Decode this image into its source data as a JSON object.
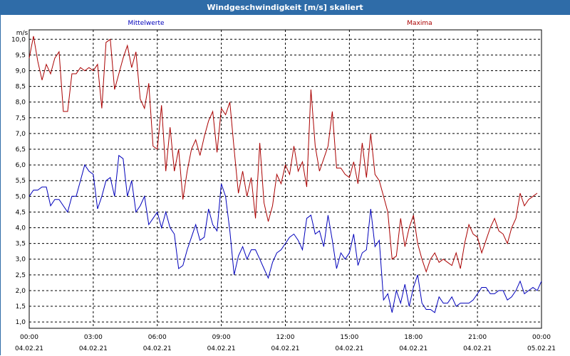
{
  "window": {
    "title": "Windgeschwindigkeit [m/s] skaliert"
  },
  "colors": {
    "avg": "#0000bb",
    "max": "#aa0000",
    "grid": "#000000",
    "frame": "#2f6ca8"
  },
  "chart_data": {
    "type": "line",
    "title": "Windgeschwindigkeit [m/s] skaliert",
    "ylabel": "m/s",
    "xlabel": "",
    "ylim": [
      0.8,
      10.3
    ],
    "xlim": [
      0,
      24
    ],
    "grid": true,
    "legend_position": "top",
    "yticks": [
      "1,0",
      "1,5",
      "2,0",
      "2,5",
      "3,0",
      "3,5",
      "4,0",
      "4,5",
      "5,0",
      "5,5",
      "6,0",
      "6,5",
      "7,0",
      "7,5",
      "8,0",
      "8,5",
      "9,0",
      "9,5",
      "10,0"
    ],
    "xticks": [
      {
        "time": "00:00",
        "date": "04.02.21"
      },
      {
        "time": "03:00",
        "date": "04.02.21"
      },
      {
        "time": "06:00",
        "date": "04.02.21"
      },
      {
        "time": "09:00",
        "date": "04.02.21"
      },
      {
        "time": "12:00",
        "date": "04.02.21"
      },
      {
        "time": "15:00",
        "date": "04.02.21"
      },
      {
        "time": "18:00",
        "date": "04.02.21"
      },
      {
        "time": "21:00",
        "date": "04.02.21"
      },
      {
        "time": "00:00",
        "date": "05.02.21"
      }
    ],
    "series": [
      {
        "name": "Mittelwerte",
        "color": "#0000bb",
        "points": [
          [
            0.0,
            5.0
          ],
          [
            0.2,
            5.2
          ],
          [
            0.4,
            5.2
          ],
          [
            0.6,
            5.3
          ],
          [
            0.8,
            5.3
          ],
          [
            1.0,
            4.7
          ],
          [
            1.2,
            4.9
          ],
          [
            1.4,
            4.9
          ],
          [
            1.6,
            4.7
          ],
          [
            1.8,
            4.5
          ],
          [
            2.0,
            5.0
          ],
          [
            2.2,
            5.0
          ],
          [
            2.4,
            5.5
          ],
          [
            2.6,
            6.0
          ],
          [
            2.8,
            5.8
          ],
          [
            3.0,
            5.7
          ],
          [
            3.2,
            4.6
          ],
          [
            3.4,
            5.0
          ],
          [
            3.6,
            5.5
          ],
          [
            3.8,
            5.6
          ],
          [
            4.0,
            5.0
          ],
          [
            4.2,
            6.3
          ],
          [
            4.4,
            6.2
          ],
          [
            4.6,
            5.0
          ],
          [
            4.8,
            5.5
          ],
          [
            5.0,
            4.5
          ],
          [
            5.2,
            4.7
          ],
          [
            5.4,
            5.0
          ],
          [
            5.6,
            4.1
          ],
          [
            5.8,
            4.3
          ],
          [
            6.0,
            4.5
          ],
          [
            6.2,
            4.0
          ],
          [
            6.4,
            4.5
          ],
          [
            6.6,
            4.0
          ],
          [
            6.8,
            3.8
          ],
          [
            7.0,
            2.7
          ],
          [
            7.2,
            2.8
          ],
          [
            7.4,
            3.3
          ],
          [
            7.6,
            3.7
          ],
          [
            7.8,
            4.1
          ],
          [
            8.0,
            3.6
          ],
          [
            8.2,
            3.7
          ],
          [
            8.4,
            4.6
          ],
          [
            8.6,
            4.1
          ],
          [
            8.8,
            3.9
          ],
          [
            9.0,
            5.4
          ],
          [
            9.2,
            5.0
          ],
          [
            9.4,
            3.9
          ],
          [
            9.6,
            2.5
          ],
          [
            9.8,
            3.1
          ],
          [
            10.0,
            3.4
          ],
          [
            10.2,
            3.0
          ],
          [
            10.4,
            3.3
          ],
          [
            10.6,
            3.3
          ],
          [
            10.8,
            3.0
          ],
          [
            11.0,
            2.7
          ],
          [
            11.2,
            2.4
          ],
          [
            11.4,
            2.9
          ],
          [
            11.6,
            3.2
          ],
          [
            11.8,
            3.3
          ],
          [
            12.0,
            3.5
          ],
          [
            12.2,
            3.7
          ],
          [
            12.4,
            3.8
          ],
          [
            12.6,
            3.6
          ],
          [
            12.8,
            3.3
          ],
          [
            13.0,
            4.3
          ],
          [
            13.2,
            4.4
          ],
          [
            13.4,
            3.8
          ],
          [
            13.6,
            3.9
          ],
          [
            13.8,
            3.4
          ],
          [
            14.0,
            4.4
          ],
          [
            14.2,
            3.6
          ],
          [
            14.4,
            2.7
          ],
          [
            14.6,
            3.2
          ],
          [
            14.8,
            3.0
          ],
          [
            15.0,
            3.2
          ],
          [
            15.2,
            3.8
          ],
          [
            15.4,
            2.8
          ],
          [
            15.6,
            3.2
          ],
          [
            15.8,
            3.3
          ],
          [
            16.0,
            4.6
          ],
          [
            16.2,
            3.4
          ],
          [
            16.4,
            3.6
          ],
          [
            16.6,
            1.7
          ],
          [
            16.8,
            1.9
          ],
          [
            17.0,
            1.3
          ],
          [
            17.2,
            2.0
          ],
          [
            17.4,
            1.6
          ],
          [
            17.6,
            2.2
          ],
          [
            17.8,
            1.5
          ],
          [
            18.0,
            2.1
          ],
          [
            18.2,
            2.5
          ],
          [
            18.4,
            1.6
          ],
          [
            18.6,
            1.4
          ],
          [
            18.8,
            1.4
          ],
          [
            19.0,
            1.3
          ],
          [
            19.2,
            1.8
          ],
          [
            19.4,
            1.6
          ],
          [
            19.6,
            1.6
          ],
          [
            19.8,
            1.8
          ],
          [
            20.0,
            1.5
          ],
          [
            20.2,
            1.6
          ],
          [
            20.4,
            1.6
          ],
          [
            20.6,
            1.6
          ],
          [
            20.8,
            1.7
          ],
          [
            21.0,
            1.9
          ],
          [
            21.2,
            2.1
          ],
          [
            21.4,
            2.1
          ],
          [
            21.6,
            1.9
          ],
          [
            21.8,
            1.9
          ],
          [
            22.0,
            2.0
          ],
          [
            22.2,
            2.0
          ],
          [
            22.4,
            1.7
          ],
          [
            22.6,
            1.8
          ],
          [
            22.8,
            2.0
          ],
          [
            23.0,
            2.3
          ],
          [
            23.2,
            1.9
          ],
          [
            23.4,
            2.0
          ],
          [
            23.6,
            2.1
          ],
          [
            23.8,
            2.0
          ],
          [
            24.0,
            2.3
          ]
        ]
      },
      {
        "name": "Maxima",
        "color": "#aa0000",
        "points": [
          [
            0.0,
            9.4
          ],
          [
            0.2,
            10.1
          ],
          [
            0.4,
            9.3
          ],
          [
            0.6,
            8.7
          ],
          [
            0.8,
            9.2
          ],
          [
            1.0,
            8.9
          ],
          [
            1.2,
            9.4
          ],
          [
            1.4,
            9.6
          ],
          [
            1.6,
            7.7
          ],
          [
            1.8,
            7.7
          ],
          [
            2.0,
            8.9
          ],
          [
            2.2,
            8.9
          ],
          [
            2.4,
            9.1
          ],
          [
            2.6,
            9.0
          ],
          [
            2.8,
            9.1
          ],
          [
            3.0,
            9.0
          ],
          [
            3.2,
            9.2
          ],
          [
            3.4,
            7.8
          ],
          [
            3.6,
            9.9
          ],
          [
            3.8,
            10.0
          ],
          [
            4.0,
            8.4
          ],
          [
            4.2,
            8.9
          ],
          [
            4.4,
            9.4
          ],
          [
            4.6,
            9.8
          ],
          [
            4.8,
            9.1
          ],
          [
            5.0,
            9.6
          ],
          [
            5.2,
            8.1
          ],
          [
            5.4,
            7.8
          ],
          [
            5.6,
            8.6
          ],
          [
            5.8,
            6.6
          ],
          [
            6.0,
            6.5
          ],
          [
            6.2,
            7.9
          ],
          [
            6.4,
            5.8
          ],
          [
            6.6,
            7.2
          ],
          [
            6.8,
            5.8
          ],
          [
            7.0,
            6.5
          ],
          [
            7.2,
            4.9
          ],
          [
            7.4,
            5.8
          ],
          [
            7.6,
            6.5
          ],
          [
            7.8,
            6.8
          ],
          [
            8.0,
            6.3
          ],
          [
            8.2,
            6.9
          ],
          [
            8.4,
            7.4
          ],
          [
            8.6,
            7.7
          ],
          [
            8.8,
            6.4
          ],
          [
            9.0,
            7.8
          ],
          [
            9.2,
            7.6
          ],
          [
            9.4,
            8.0
          ],
          [
            9.6,
            6.5
          ],
          [
            9.8,
            5.1
          ],
          [
            10.0,
            5.8
          ],
          [
            10.2,
            5.0
          ],
          [
            10.4,
            5.6
          ],
          [
            10.6,
            4.3
          ],
          [
            10.8,
            6.7
          ],
          [
            11.0,
            4.8
          ],
          [
            11.2,
            4.2
          ],
          [
            11.4,
            4.7
          ],
          [
            11.6,
            5.7
          ],
          [
            11.8,
            5.4
          ],
          [
            12.0,
            6.0
          ],
          [
            12.2,
            5.7
          ],
          [
            12.4,
            6.6
          ],
          [
            12.6,
            5.8
          ],
          [
            12.8,
            6.1
          ],
          [
            13.0,
            5.3
          ],
          [
            13.2,
            8.4
          ],
          [
            13.4,
            6.6
          ],
          [
            13.6,
            5.8
          ],
          [
            13.8,
            6.2
          ],
          [
            14.0,
            6.6
          ],
          [
            14.2,
            7.7
          ],
          [
            14.4,
            5.9
          ],
          [
            14.6,
            5.9
          ],
          [
            14.8,
            5.7
          ],
          [
            15.0,
            5.6
          ],
          [
            15.2,
            6.1
          ],
          [
            15.4,
            5.4
          ],
          [
            15.6,
            6.7
          ],
          [
            15.8,
            5.6
          ],
          [
            16.0,
            7.0
          ],
          [
            16.2,
            5.7
          ],
          [
            16.4,
            5.5
          ],
          [
            16.6,
            5.0
          ],
          [
            16.8,
            4.5
          ],
          [
            17.0,
            3.0
          ],
          [
            17.2,
            3.1
          ],
          [
            17.4,
            4.3
          ],
          [
            17.6,
            3.4
          ],
          [
            17.8,
            4.0
          ],
          [
            18.0,
            4.4
          ],
          [
            18.2,
            3.5
          ],
          [
            18.4,
            3.0
          ],
          [
            18.6,
            2.6
          ],
          [
            18.8,
            3.0
          ],
          [
            19.0,
            3.2
          ],
          [
            19.2,
            2.9
          ],
          [
            19.4,
            3.0
          ],
          [
            19.6,
            2.9
          ],
          [
            19.8,
            2.8
          ],
          [
            20.0,
            3.2
          ],
          [
            20.2,
            2.7
          ],
          [
            20.4,
            3.5
          ],
          [
            20.6,
            4.1
          ],
          [
            20.8,
            3.8
          ],
          [
            21.0,
            3.7
          ],
          [
            21.2,
            3.2
          ],
          [
            21.4,
            3.6
          ],
          [
            21.6,
            4.0
          ],
          [
            21.8,
            4.3
          ],
          [
            22.0,
            3.9
          ],
          [
            22.2,
            3.8
          ],
          [
            22.4,
            3.5
          ],
          [
            22.6,
            4.0
          ],
          [
            22.8,
            4.3
          ],
          [
            23.0,
            5.1
          ],
          [
            23.2,
            4.7
          ],
          [
            23.4,
            4.9
          ],
          [
            23.6,
            5.0
          ],
          [
            23.8,
            5.1
          ]
        ]
      }
    ]
  }
}
